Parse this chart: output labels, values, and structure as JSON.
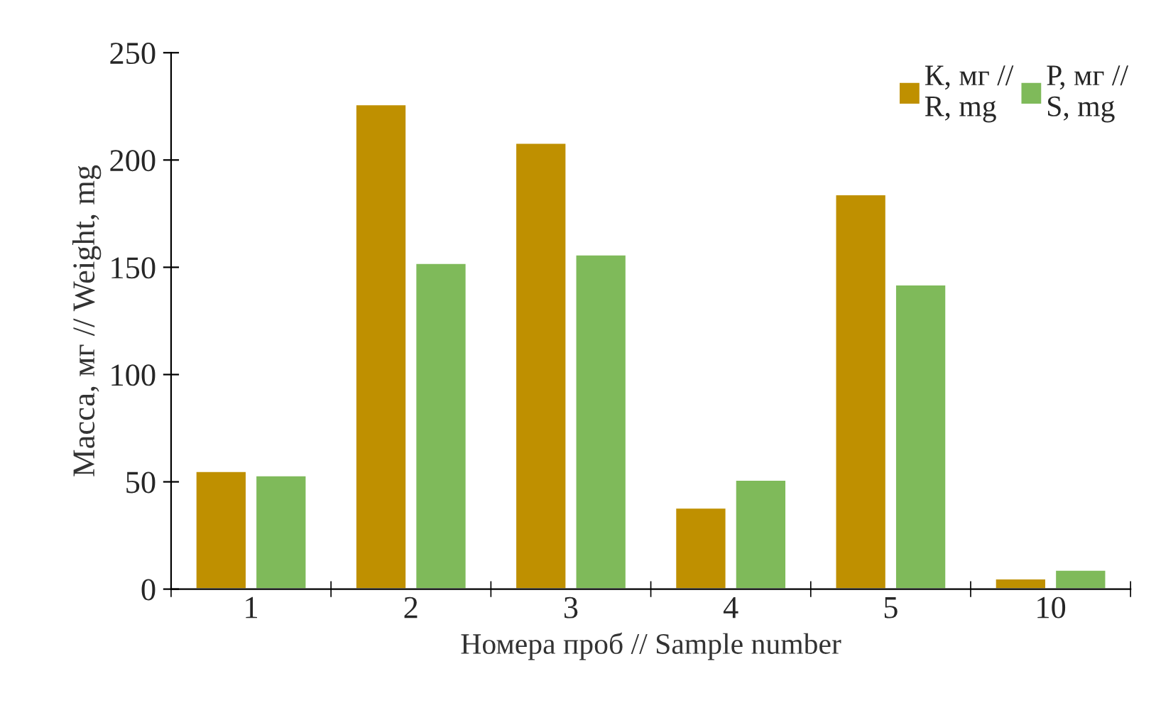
{
  "chart_data": {
    "type": "bar",
    "xlabel": "Номера проб // Sample number",
    "ylabel": "Масса, мг // Weight, mg",
    "categories": [
      "1",
      "2",
      "3",
      "4",
      "5",
      "10"
    ],
    "series": [
      {
        "name": "К, мг //\nR, mg",
        "color": "#bf9000",
        "values": [
          55,
          226,
          208,
          38,
          184,
          5
        ]
      },
      {
        "name": "Р, мг //\nS, mg",
        "color": "#7fba5a",
        "values": [
          53,
          152,
          156,
          51,
          142,
          9
        ]
      }
    ],
    "ylim": [
      0,
      250
    ],
    "yticks": [
      0,
      50,
      100,
      150,
      200,
      250
    ],
    "grid": false,
    "legend": "top right"
  }
}
